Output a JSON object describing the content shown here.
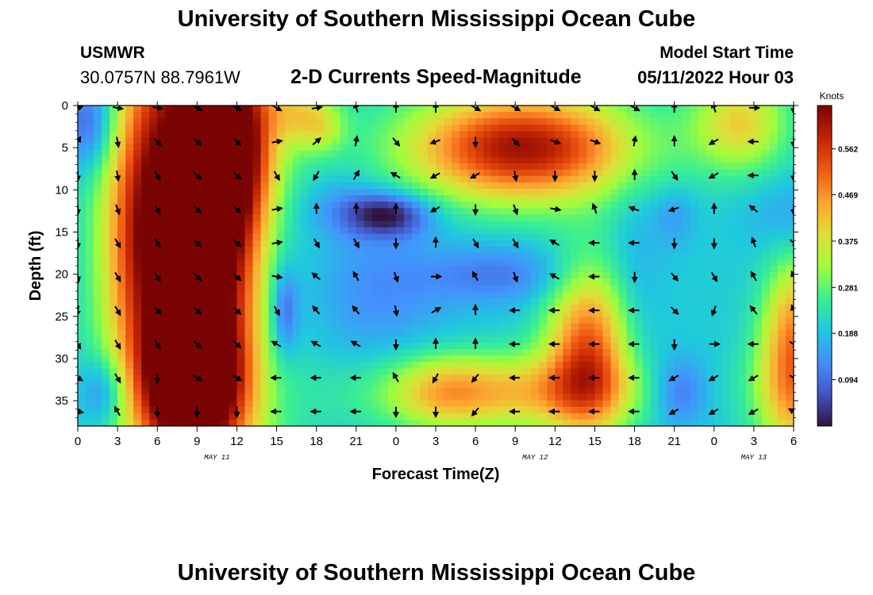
{
  "header": {
    "title": "University of Southern Mississippi Ocean Cube",
    "station": "USMWR",
    "coordinates": "30.0757N  88.7961W",
    "subtitle": "2-D Currents Speed-Magnitude",
    "model_start_label": "Model Start Time",
    "model_start_value": "05/11/2022 Hour 03"
  },
  "footer": {
    "title": "University of Southern Mississippi Ocean Cube"
  },
  "chart_data": {
    "type": "heatmap",
    "title": "2-D Currents Speed-Magnitude",
    "xlabel": "Forecast Time(Z)",
    "ylabel": "Depth (ft)",
    "x_tick_labels": [
      "0",
      "3",
      "6",
      "9",
      "12",
      "15",
      "18",
      "21",
      "0",
      "3",
      "6",
      "9",
      "12",
      "15",
      "18",
      "21",
      "0",
      "3",
      "6"
    ],
    "x_range_hours": [
      0,
      54
    ],
    "y_ticks": [
      0,
      5,
      10,
      15,
      20,
      25,
      30,
      35
    ],
    "y_range": [
      0,
      38
    ],
    "y_inverted": true,
    "date_labels": [
      {
        "text": "MAY 11",
        "hour": 10.5
      },
      {
        "text": "MAY 12",
        "hour": 34.5
      },
      {
        "text": "MAY 13",
        "hour": 51
      }
    ],
    "colorbar": {
      "label": "Knots",
      "ticks": [
        "0.562",
        "0.469",
        "0.375",
        "0.281",
        "0.188",
        "0.094"
      ],
      "tick_values": [
        0.562,
        0.469,
        0.375,
        0.281,
        0.188,
        0.094
      ],
      "range": [
        0.0,
        0.65
      ],
      "colormap": [
        "#30123b",
        "#4454c4",
        "#4490fe",
        "#1fc9dd",
        "#3cf08f",
        "#a2fc3c",
        "#e1dd37",
        "#fea331",
        "#ef5911",
        "#c22403",
        "#7a0403"
      ]
    },
    "grid": true,
    "speed_features": [
      {
        "hour": 9,
        "depth": 15,
        "sx": 3.8,
        "sy": 22,
        "value": 0.6
      },
      {
        "hour": 8.5,
        "depth": 33,
        "sx": 2.5,
        "sy": 5,
        "value": 0.35
      },
      {
        "hour": 12,
        "depth": 5,
        "sx": 1.8,
        "sy": 7,
        "value": 0.25
      },
      {
        "hour": 4.5,
        "depth": 15,
        "sx": 1.8,
        "sy": 12,
        "value": 0.15
      },
      {
        "hour": 1,
        "depth": 2,
        "sx": 1.5,
        "sy": 4,
        "value": -0.15
      },
      {
        "hour": 2,
        "depth": 34,
        "sx": 1.3,
        "sy": 3,
        "value": -0.12
      },
      {
        "hour": 14.8,
        "depth": 21,
        "sx": 1.8,
        "sy": 10,
        "value": -0.09
      },
      {
        "hour": 15.6,
        "depth": 24.5,
        "sx": 0.7,
        "sy": 3.5,
        "value": -0.12
      },
      {
        "hour": 17,
        "depth": 1,
        "sx": 1.8,
        "sy": 2.5,
        "value": 0.14
      },
      {
        "hour": 18.5,
        "depth": 3,
        "sx": 1.2,
        "sy": 2,
        "value": 0.08
      },
      {
        "hour": 23.5,
        "depth": 13,
        "sx": 2.2,
        "sy": 1.8,
        "value": -0.18
      },
      {
        "hour": 20,
        "depth": 12,
        "sx": 2.5,
        "sy": 2.5,
        "value": -0.06
      },
      {
        "hour": 22.5,
        "depth": 22,
        "sx": 4,
        "sy": 6,
        "value": -0.07
      },
      {
        "hour": 32,
        "depth": 20,
        "sx": 4,
        "sy": 2.5,
        "value": -0.09
      },
      {
        "hour": 33.5,
        "depth": 5,
        "sx": 6,
        "sy": 4.5,
        "value": 0.42
      },
      {
        "hour": 38.5,
        "depth": 29,
        "sx": 2.2,
        "sy": 7,
        "value": 0.32
      },
      {
        "hour": 32.5,
        "depth": 34,
        "sx": 7,
        "sy": 3.2,
        "value": 0.22
      },
      {
        "hour": 27.5,
        "depth": 34,
        "sx": 2.5,
        "sy": 3,
        "value": 0.1
      },
      {
        "hour": 42,
        "depth": 21,
        "sx": 1.5,
        "sy": 12,
        "value": -0.04
      },
      {
        "hour": 45.5,
        "depth": 34,
        "sx": 1.5,
        "sy": 3,
        "value": -0.12
      },
      {
        "hour": 45,
        "depth": 13,
        "sx": 1.2,
        "sy": 2.5,
        "value": -0.06
      },
      {
        "hour": 50,
        "depth": 2,
        "sx": 2.5,
        "sy": 4,
        "value": 0.2
      },
      {
        "hour": 54,
        "depth": 33,
        "sx": 2,
        "sy": 6,
        "value": 0.28
      },
      {
        "hour": 54,
        "depth": 24,
        "sx": 1.5,
        "sy": 5,
        "value": 0.15
      },
      {
        "hour": 54,
        "depth": 13,
        "sx": 2.5,
        "sy": 3,
        "value": -0.05
      }
    ],
    "speed_base": 0.2,
    "vector_grid": {
      "hours": [
        0,
        3,
        6,
        9,
        12,
        15,
        18,
        21,
        24,
        27,
        30,
        33,
        36,
        39,
        42,
        45,
        48,
        51,
        54
      ],
      "depths": [
        0,
        4,
        8,
        12,
        16,
        20,
        24,
        28,
        32,
        36
      ],
      "angles_deg": [
        [
          110,
          80,
          80,
          60,
          60,
          60,
          100,
          200,
          180,
          180,
          60,
          60,
          60,
          60,
          60,
          180,
          200,
          90,
          0
        ],
        [
          150,
          10,
          45,
          45,
          45,
          100,
          130,
          170,
          40,
          290,
          0,
          45,
          70,
          70,
          170,
          180,
          300,
          270,
          0
        ],
        [
          0,
          10,
          30,
          45,
          45,
          30,
          330,
          150,
          240,
          300,
          300,
          10,
          0,
          0,
          180,
          35,
          300,
          270,
          0
        ],
        [
          0,
          20,
          30,
          45,
          45,
          100,
          180,
          180,
          180,
          300,
          0,
          20,
          80,
          200,
          250,
          290,
          180,
          230,
          0
        ],
        [
          0,
          30,
          30,
          45,
          45,
          100,
          30,
          30,
          0,
          180,
          30,
          30,
          240,
          270,
          270,
          0,
          0,
          200,
          50
        ],
        [
          10,
          30,
          30,
          45,
          45,
          80,
          230,
          210,
          20,
          90,
          210,
          20,
          240,
          270,
          0,
          40,
          30,
          210,
          200
        ],
        [
          350,
          30,
          45,
          45,
          45,
          30,
          220,
          220,
          10,
          120,
          180,
          270,
          270,
          270,
          270,
          45,
          340,
          220,
          200
        ],
        [
          30,
          30,
          30,
          45,
          45,
          240,
          240,
          240,
          0,
          180,
          180,
          270,
          270,
          270,
          270,
          0,
          90,
          270,
          60
        ],
        [
          60,
          30,
          0,
          60,
          60,
          270,
          270,
          270,
          210,
          330,
          320,
          270,
          270,
          270,
          270,
          300,
          300,
          300,
          60
        ],
        [
          80,
          210,
          0,
          0,
          0,
          270,
          270,
          270,
          0,
          0,
          320,
          270,
          270,
          270,
          270,
          300,
          300,
          300,
          240
        ]
      ]
    }
  }
}
